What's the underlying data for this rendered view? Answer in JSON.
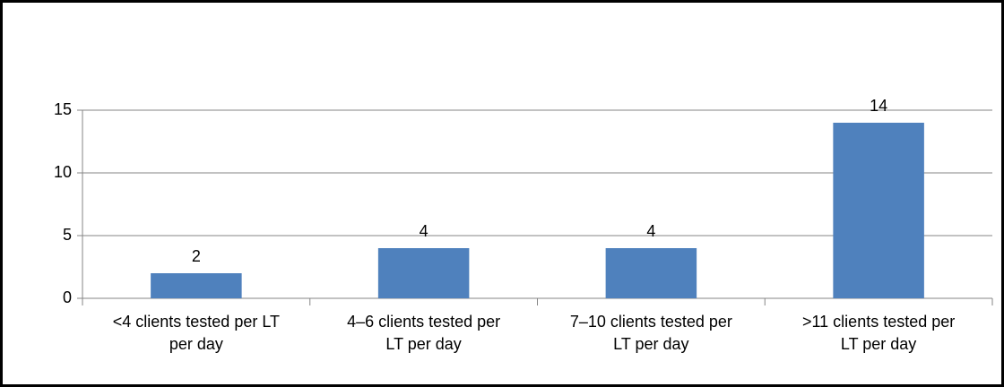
{
  "chart_data": {
    "type": "bar",
    "categories": [
      "<4 clients tested per LT\nper day",
      "4–6 clients tested per\nLT per day",
      "7–10 clients tested per\nLT per day",
      ">11 clients tested per\nLT per day"
    ],
    "values": [
      2,
      4,
      4,
      14
    ],
    "color": "#4f81bd",
    "ylim": [
      0,
      15
    ],
    "yticks": [
      0,
      5,
      10,
      15
    ],
    "grid": true
  }
}
